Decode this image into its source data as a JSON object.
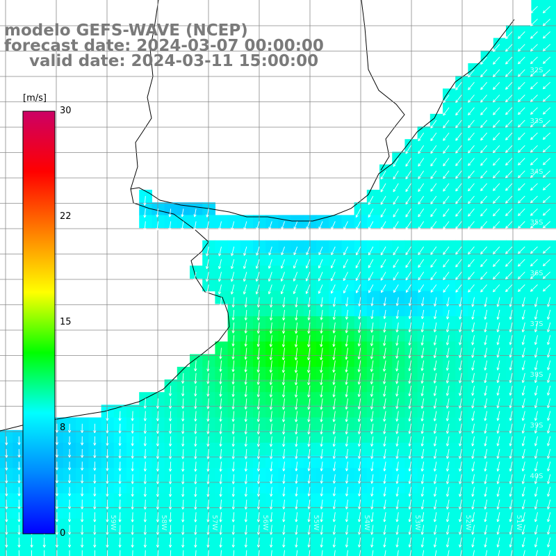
{
  "title": {
    "line1": "modelo GEFS-WAVE (NCEP)",
    "line2": "forecast date: 2024-03-07 00:00:00",
    "line3": "valid date: 2024-03-11 15:00:00"
  },
  "colorbar": {
    "unit": "[m/s]",
    "ticks": [
      "30",
      "22",
      "15",
      "8",
      "0"
    ],
    "tick_values": [
      30,
      22,
      15,
      8,
      0
    ],
    "colors": [
      "#0000ff",
      "#0088ff",
      "#00ffff",
      "#00ff00",
      "#ffff00",
      "#ff7f00",
      "#ff0000",
      "#cc0066"
    ]
  },
  "map": {
    "lat_labels": [
      "32S",
      "33S",
      "34S",
      "35S",
      "36S",
      "37S",
      "38S",
      "39S",
      "40S"
    ],
    "lon_labels": [
      "59W",
      "58W",
      "57W",
      "56W",
      "55W",
      "54W",
      "53W",
      "52W",
      "51W"
    ],
    "land_color": "#ffffff",
    "grid_color": "#888888",
    "arrow_color": "#ffffff"
  }
}
